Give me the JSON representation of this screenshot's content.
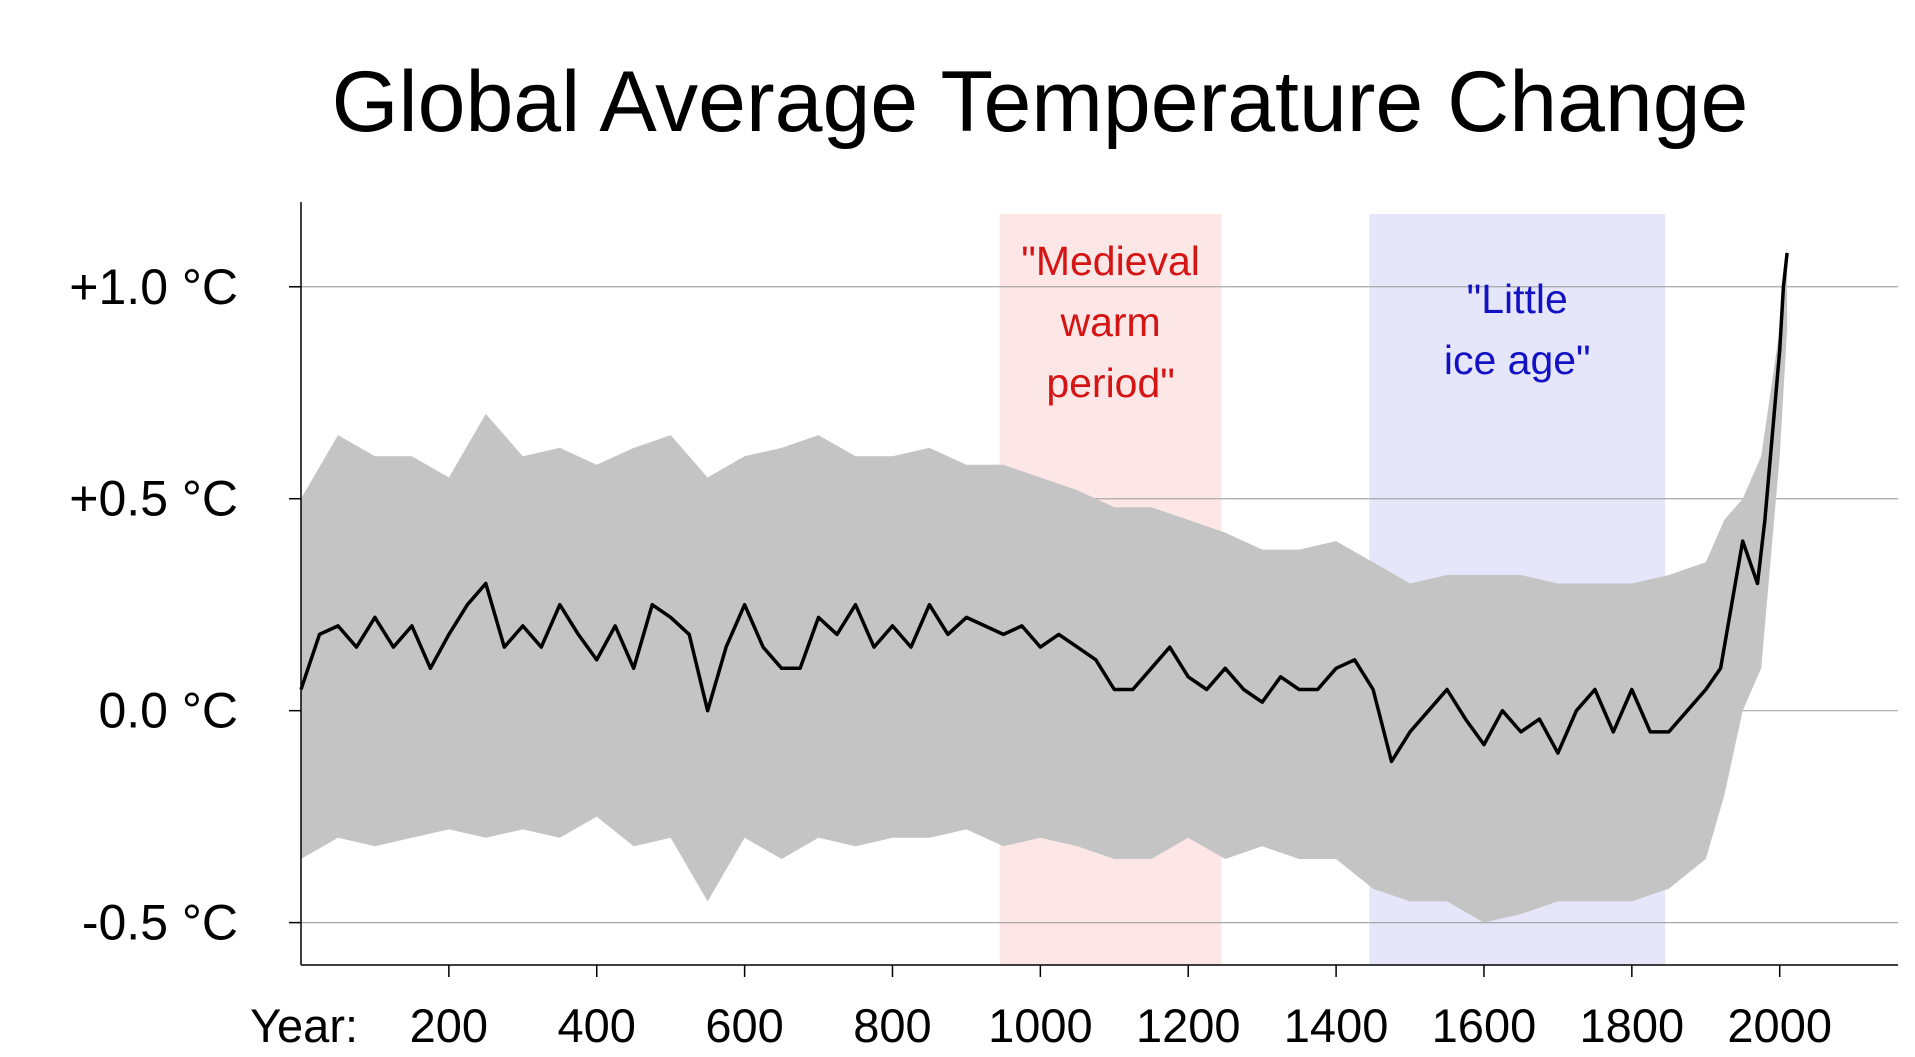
{
  "chart_data": {
    "type": "line",
    "title": "Global Average Temperature Change",
    "xlabel": "Year:",
    "ylabel": "",
    "xlim": [
      0,
      2160
    ],
    "ylim": [
      -0.6,
      1.2
    ],
    "x_ticks": [
      200,
      400,
      600,
      800,
      1000,
      1200,
      1400,
      1600,
      1800,
      2000
    ],
    "x_tick_labels": [
      "200",
      "400",
      "600",
      "800",
      "1000",
      "1200",
      "1400",
      "1600",
      "1800",
      "2000"
    ],
    "y_ticks": [
      1.0,
      0.5,
      0.0,
      -0.5
    ],
    "y_tick_labels": [
      "+1.0 °C",
      "+0.5 °C",
      "0.0 °C",
      "-0.5 °C"
    ],
    "grid": "horizontal",
    "periods": [
      {
        "name": "medieval-warm-period",
        "label_lines": [
          "\"Medieval",
          "warm",
          "period\""
        ],
        "x_start": 945,
        "x_end": 1245,
        "color": "#fde6e6",
        "text_color": "#d51414"
      },
      {
        "name": "little-ice-age",
        "label_lines": [
          "\"Little",
          "ice age\""
        ],
        "x_start": 1445,
        "x_end": 1845,
        "color": "#e6e6fb",
        "text_color": "#1212c4"
      }
    ],
    "series": [
      {
        "kind": "mean",
        "color": "#000000",
        "x": [
          0,
          25,
          50,
          75,
          100,
          125,
          150,
          175,
          200,
          225,
          250,
          275,
          300,
          325,
          350,
          375,
          400,
          425,
          450,
          475,
          500,
          525,
          550,
          575,
          600,
          625,
          650,
          675,
          700,
          725,
          750,
          775,
          800,
          825,
          850,
          875,
          900,
          925,
          950,
          975,
          1000,
          1025,
          1050,
          1075,
          1100,
          1125,
          1150,
          1175,
          1200,
          1225,
          1250,
          1275,
          1300,
          1325,
          1350,
          1375,
          1400,
          1425,
          1450,
          1475,
          1500,
          1525,
          1550,
          1575,
          1600,
          1625,
          1650,
          1675,
          1700,
          1725,
          1750,
          1775,
          1800,
          1825,
          1850,
          1875,
          1900,
          1920,
          1940,
          1950,
          1960,
          1970,
          1980,
          1990,
          2000,
          2005,
          2010
        ],
        "y": [
          0.05,
          0.18,
          0.2,
          0.15,
          0.22,
          0.15,
          0.2,
          0.1,
          0.18,
          0.25,
          0.3,
          0.15,
          0.2,
          0.15,
          0.25,
          0.18,
          0.12,
          0.2,
          0.1,
          0.25,
          0.22,
          0.18,
          0.0,
          0.15,
          0.25,
          0.15,
          0.1,
          0.1,
          0.22,
          0.18,
          0.25,
          0.15,
          0.2,
          0.15,
          0.25,
          0.18,
          0.22,
          0.2,
          0.18,
          0.2,
          0.15,
          0.18,
          0.15,
          0.12,
          0.05,
          0.05,
          0.1,
          0.15,
          0.08,
          0.05,
          0.1,
          0.05,
          0.02,
          0.08,
          0.05,
          0.05,
          0.1,
          0.12,
          0.05,
          -0.12,
          -0.05,
          0.0,
          0.05,
          -0.02,
          -0.08,
          0.0,
          -0.05,
          -0.02,
          -0.1,
          0.0,
          0.05,
          -0.05,
          0.05,
          -0.05,
          -0.05,
          0.0,
          0.05,
          0.1,
          0.3,
          0.4,
          0.35,
          0.3,
          0.45,
          0.65,
          0.85,
          1.0,
          1.08
        ]
      },
      {
        "kind": "uncertainty-band",
        "color": "#c4c4c4",
        "x": [
          0,
          50,
          100,
          150,
          200,
          250,
          300,
          350,
          400,
          450,
          500,
          550,
          600,
          650,
          700,
          750,
          800,
          850,
          900,
          950,
          1000,
          1050,
          1100,
          1150,
          1200,
          1250,
          1300,
          1350,
          1400,
          1450,
          1500,
          1550,
          1600,
          1650,
          1700,
          1750,
          1800,
          1850,
          1900,
          1925,
          1950,
          1975,
          2000,
          2010
        ],
        "upper": [
          0.5,
          0.65,
          0.6,
          0.6,
          0.55,
          0.7,
          0.6,
          0.62,
          0.58,
          0.62,
          0.65,
          0.55,
          0.6,
          0.62,
          0.65,
          0.6,
          0.6,
          0.62,
          0.58,
          0.58,
          0.55,
          0.52,
          0.48,
          0.48,
          0.45,
          0.42,
          0.38,
          0.38,
          0.4,
          0.35,
          0.3,
          0.32,
          0.32,
          0.32,
          0.3,
          0.3,
          0.3,
          0.32,
          0.35,
          0.45,
          0.5,
          0.6,
          0.9,
          1.1
        ],
        "lower": [
          -0.35,
          -0.3,
          -0.32,
          -0.3,
          -0.28,
          -0.3,
          -0.28,
          -0.3,
          -0.25,
          -0.32,
          -0.3,
          -0.45,
          -0.3,
          -0.35,
          -0.3,
          -0.32,
          -0.3,
          -0.3,
          -0.28,
          -0.32,
          -0.3,
          -0.32,
          -0.35,
          -0.35,
          -0.3,
          -0.35,
          -0.32,
          -0.35,
          -0.35,
          -0.42,
          -0.45,
          -0.45,
          -0.5,
          -0.48,
          -0.45,
          -0.45,
          -0.45,
          -0.42,
          -0.35,
          -0.2,
          0.0,
          0.1,
          0.6,
          0.9
        ]
      }
    ]
  }
}
